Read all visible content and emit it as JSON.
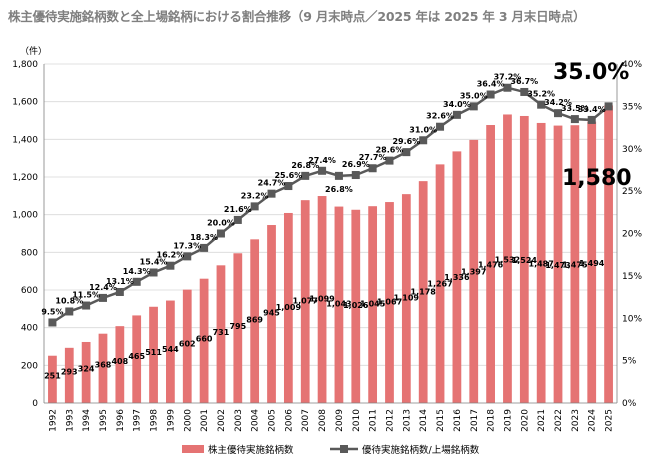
{
  "title": "株主優待実施銘柄数と全上場銘柄における割合推移（9 月末時点／2025 年は 2025 年 3 月末日時点）",
  "chart_data": {
    "type": "bar+line",
    "title": "株主優待実施銘柄数と全上場銘柄における割合推移（9 月末時点／2025 年は 2025 年 3 月末日時点）",
    "unit_label": "（件）",
    "categories": [
      "1992",
      "1993",
      "1994",
      "1995",
      "1996",
      "1997",
      "1998",
      "1999",
      "2000",
      "2001",
      "2002",
      "2003",
      "2004",
      "2005",
      "2006",
      "2007",
      "2008",
      "2009",
      "2010",
      "2011",
      "2012",
      "2013",
      "2014",
      "2015",
      "2016",
      "2017",
      "2018",
      "2019",
      "2020",
      "2021",
      "2022",
      "2023",
      "2024",
      "2025"
    ],
    "series": [
      {
        "name": "株主優待実施銘柄数",
        "type": "bar",
        "axis": "left",
        "color": "#e57373",
        "values": [
          251,
          293,
          324,
          368,
          408,
          465,
          511,
          544,
          602,
          660,
          731,
          795,
          869,
          945,
          1009,
          1077,
          1099,
          1043,
          1026,
          1045,
          1067,
          1109,
          1178,
          1267,
          1336,
          1397,
          1476,
          1532,
          1524,
          1487,
          1473,
          1475,
          1494,
          1580
        ],
        "labels": [
          "251",
          "293",
          "324",
          "368",
          "408",
          "465",
          "511",
          "544",
          "602",
          "660",
          "731",
          "795",
          "869",
          "945",
          "1,009",
          "1,077",
          "1,099",
          "1,043",
          "1,026",
          "1,045",
          "1,067",
          "1,109",
          "1,178",
          "1,267",
          "1,336",
          "1,397",
          "1,476",
          "1,532",
          "1,524",
          "1,487",
          "1,473",
          "1,475",
          "1,494",
          "1,580"
        ]
      },
      {
        "name": "優待実施銘柄数/上場銘柄数",
        "type": "line",
        "axis": "right",
        "color": "#595959",
        "values": [
          9.5,
          10.8,
          11.5,
          12.4,
          13.1,
          14.3,
          15.4,
          16.2,
          17.3,
          18.3,
          20.0,
          21.6,
          23.2,
          24.7,
          25.6,
          26.8,
          27.4,
          26.8,
          26.9,
          27.7,
          28.6,
          29.6,
          31.0,
          32.6,
          34.0,
          35.0,
          36.4,
          37.2,
          36.7,
          35.2,
          34.2,
          33.5,
          33.4,
          35.0
        ],
        "labels": [
          "9.5%",
          "10.8%",
          "11.5%",
          "12.4%",
          "13.1%",
          "14.3%",
          "15.4%",
          "16.2%",
          "17.3%",
          "18.3%",
          "20.0%",
          "21.6%",
          "23.2%",
          "24.7%",
          "25.6%",
          "26.8%",
          "27.4%",
          "26.8%",
          "26.9%",
          "27.7%",
          "28.6%",
          "29.6%",
          "31.0%",
          "32.6%",
          "34.0%",
          "35.0%",
          "36.4%",
          "37.2%",
          "36.7%",
          "35.2%",
          "34.2%",
          "33.5%",
          "33.4%",
          ""
        ]
      }
    ],
    "y_left": {
      "min": 0,
      "max": 1800,
      "ticks": [
        "0",
        "200",
        "400",
        "600",
        "800",
        "1,000",
        "1,200",
        "1,400",
        "1,600",
        "1,800"
      ]
    },
    "y_right": {
      "min": 0,
      "max": 40,
      "ticks": [
        "0%",
        "5%",
        "10%",
        "15%",
        "20%",
        "25%",
        "30%",
        "35%",
        "40%"
      ]
    },
    "highlight": {
      "percent_label": "35.0%",
      "count_label": "1,580"
    },
    "legend_position": "bottom"
  }
}
